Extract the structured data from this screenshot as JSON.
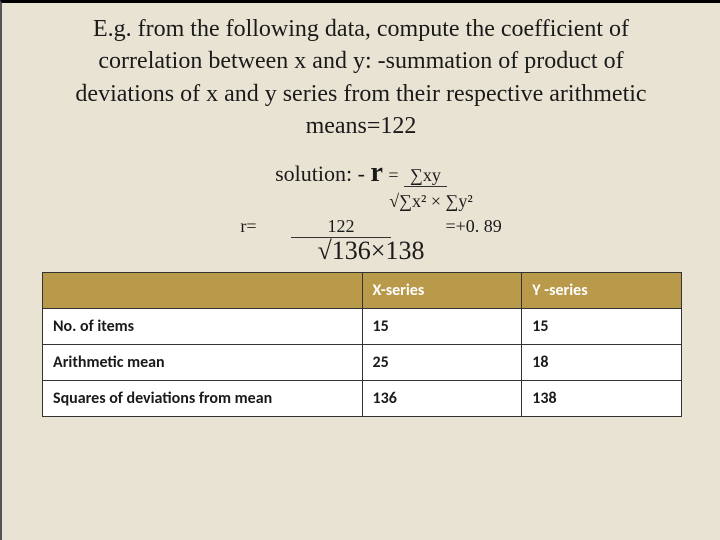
{
  "title": "E.g. from the following data, compute the coefficient of correlation between x and y: -summation of product of deviations of x and y series from their respective arithmetic means=122",
  "solution_label": "solution: -",
  "r_symbol": "r",
  "equals": "=",
  "formula_numer": "∑xy",
  "formula_denom": "√∑x² × ∑y²",
  "calc_r_label": "r=",
  "calc_numer": "122",
  "calc_result": "=+0. 89",
  "calc_denom": "√136×138",
  "table": {
    "headers": [
      "",
      "X-series",
      "Y -series"
    ],
    "rows": [
      [
        "No. of items",
        "15",
        "15"
      ],
      [
        "Arithmetic mean",
        "25",
        "18"
      ],
      [
        "Squares of deviations from mean",
        "136",
        "138"
      ]
    ]
  },
  "colors": {
    "background": "#e8e3d3",
    "table_header": "#b89a4a",
    "text": "#1a1a1a"
  }
}
